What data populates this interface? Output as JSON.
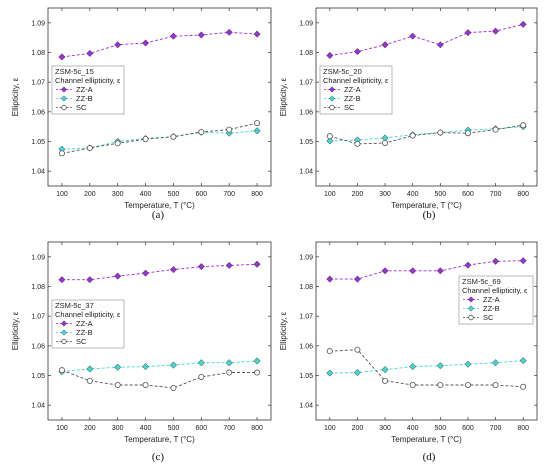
{
  "chart_data": [
    {
      "type": "line",
      "caption": "(a)",
      "legend_title": "ZSM-5c_15",
      "legend_subtitle": "Channel ellipticity, ε",
      "legend_position": "middle-left",
      "xlabel": "Temperature, T (°C)",
      "ylabel": "Ellipticity, ε",
      "xlim": [
        50,
        850
      ],
      "ylim": [
        1.035,
        1.095
      ],
      "xticks": [
        100,
        200,
        300,
        400,
        500,
        600,
        700,
        800
      ],
      "yticks": [
        1.04,
        1.05,
        1.06,
        1.07,
        1.08,
        1.09
      ],
      "x": [
        100,
        200,
        300,
        400,
        500,
        600,
        700,
        800
      ],
      "series": [
        {
          "name": "ZZ-A",
          "color": "#9b30d9",
          "marker": "diamond",
          "values": [
            1.0785,
            1.0797,
            1.0826,
            1.0832,
            1.0855,
            1.0859,
            1.0868,
            1.0862
          ]
        },
        {
          "name": "ZZ-B",
          "color": "#40d8d0",
          "marker": "diamond",
          "values": [
            1.0474,
            1.0478,
            1.05,
            1.051,
            1.0517,
            1.0531,
            1.0528,
            1.0536
          ]
        },
        {
          "name": "SC",
          "color": "#555555",
          "marker": "circle",
          "values": [
            1.046,
            1.0478,
            1.0494,
            1.0508,
            1.0516,
            1.0532,
            1.054,
            1.0562
          ]
        }
      ]
    },
    {
      "type": "line",
      "caption": "(b)",
      "legend_title": "ZSM-5c_20",
      "legend_subtitle": "Channel ellipticity, ε",
      "legend_position": "middle-left",
      "xlabel": "Temperature, T (°C)",
      "ylabel": "Ellipticity, ε",
      "xlim": [
        50,
        850
      ],
      "ylim": [
        1.035,
        1.095
      ],
      "xticks": [
        100,
        200,
        300,
        400,
        500,
        600,
        700,
        800
      ],
      "yticks": [
        1.04,
        1.05,
        1.06,
        1.07,
        1.08,
        1.09
      ],
      "x": [
        100,
        200,
        300,
        400,
        500,
        600,
        700,
        800
      ],
      "series": [
        {
          "name": "ZZ-A",
          "color": "#9b30d9",
          "marker": "diamond",
          "values": [
            1.079,
            1.0803,
            1.0826,
            1.0855,
            1.0826,
            1.0867,
            1.0872,
            1.0895
          ]
        },
        {
          "name": "ZZ-B",
          "color": "#40d8d0",
          "marker": "diamond",
          "values": [
            1.0502,
            1.0505,
            1.0512,
            1.0523,
            1.053,
            1.0538,
            1.0543,
            1.055
          ]
        },
        {
          "name": "SC",
          "color": "#555555",
          "marker": "circle",
          "values": [
            1.0518,
            1.0492,
            1.0495,
            1.052,
            1.053,
            1.0528,
            1.054,
            1.0555
          ]
        }
      ]
    },
    {
      "type": "line",
      "caption": "(c)",
      "legend_title": "ZSM-5c_37",
      "legend_subtitle": "Channel ellipticity, ε",
      "legend_position": "middle-left",
      "xlabel": "Temperature, T (°C)",
      "ylabel": "Ellipticity, ε",
      "xlim": [
        50,
        850
      ],
      "ylim": [
        1.035,
        1.095
      ],
      "xticks": [
        100,
        200,
        300,
        400,
        500,
        600,
        700,
        800
      ],
      "yticks": [
        1.04,
        1.05,
        1.06,
        1.07,
        1.08,
        1.09
      ],
      "x": [
        100,
        200,
        300,
        400,
        500,
        600,
        700,
        800
      ],
      "series": [
        {
          "name": "ZZ-A",
          "color": "#9b30d9",
          "marker": "diamond",
          "values": [
            1.0823,
            1.0823,
            1.0835,
            1.0845,
            1.0857,
            1.0867,
            1.0871,
            1.0875
          ]
        },
        {
          "name": "ZZ-B",
          "color": "#40d8d0",
          "marker": "diamond",
          "values": [
            1.0513,
            1.0522,
            1.0528,
            1.053,
            1.0535,
            1.0543,
            1.0543,
            1.0549
          ]
        },
        {
          "name": "SC",
          "color": "#555555",
          "marker": "circle",
          "values": [
            1.0518,
            1.0482,
            1.0468,
            1.0468,
            1.0458,
            1.0495,
            1.051,
            1.051
          ]
        }
      ]
    },
    {
      "type": "line",
      "caption": "(d)",
      "legend_title": "ZSM-5c_69",
      "legend_subtitle": "Channel ellipticity, ε",
      "legend_position": "top-right",
      "xlabel": "Temperature, T (°C)",
      "ylabel": "Ellipticity, ε",
      "xlim": [
        50,
        850
      ],
      "ylim": [
        1.035,
        1.095
      ],
      "xticks": [
        100,
        200,
        300,
        400,
        500,
        600,
        700,
        800
      ],
      "yticks": [
        1.04,
        1.05,
        1.06,
        1.07,
        1.08,
        1.09
      ],
      "x": [
        100,
        200,
        300,
        400,
        500,
        600,
        700,
        800
      ],
      "series": [
        {
          "name": "ZZ-A",
          "color": "#9b30d9",
          "marker": "diamond",
          "values": [
            1.0825,
            1.0825,
            1.0853,
            1.0853,
            1.0853,
            1.0872,
            1.0885,
            1.0887
          ]
        },
        {
          "name": "ZZ-B",
          "color": "#40d8d0",
          "marker": "diamond",
          "values": [
            1.0508,
            1.051,
            1.052,
            1.053,
            1.0533,
            1.0538,
            1.0543,
            1.055
          ]
        },
        {
          "name": "SC",
          "color": "#555555",
          "marker": "circle",
          "values": [
            1.0582,
            1.0587,
            1.0482,
            1.0468,
            1.0468,
            1.0468,
            1.0468,
            1.0462
          ]
        }
      ]
    }
  ]
}
